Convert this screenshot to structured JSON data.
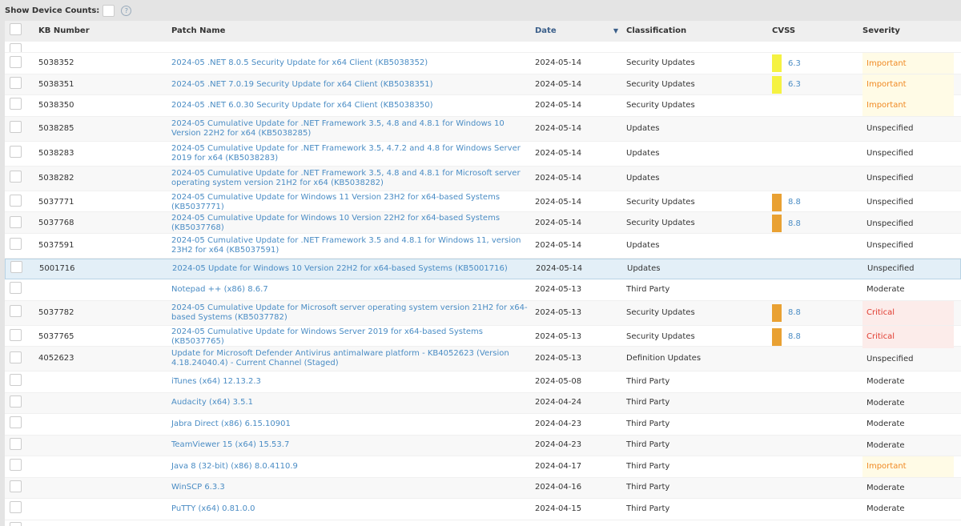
{
  "toolbar": {
    "show_device_counts": "Show Device Counts:",
    "help": "?"
  },
  "columns": {
    "kb": "KB Number",
    "name": "Patch Name",
    "date": "Date",
    "class": "Classification",
    "cvss": "CVSS",
    "severity": "Severity",
    "sort_icon": "▼"
  },
  "colors": {
    "important_text": "#f08a24",
    "important_bg": "#fffbe6",
    "critical_text": "#e03b2f",
    "critical_bg": "#fcecea",
    "cvss_medium": "#f5f242",
    "cvss_high": "#e9a133"
  },
  "rows": [
    {
      "kb": "5038352",
      "name": "2024-05 .NET 8.0.5 Security Update for x64 Client (KB5038352)",
      "date": "2024-05-14",
      "class": "Security Updates",
      "cvss": "6.3",
      "severity": "Important"
    },
    {
      "kb": "5038351",
      "name": "2024-05 .NET 7.0.19 Security Update for x64 Client (KB5038351)",
      "date": "2024-05-14",
      "class": "Security Updates",
      "cvss": "6.3",
      "severity": "Important"
    },
    {
      "kb": "5038350",
      "name": "2024-05 .NET 6.0.30 Security Update for x64 Client (KB5038350)",
      "date": "2024-05-14",
      "class": "Security Updates",
      "cvss": "",
      "severity": "Important"
    },
    {
      "kb": "5038285",
      "name": "2024-05 Cumulative Update for .NET Framework 3.5, 4.8 and 4.8.1 for Windows 10 Version 22H2 for x64 (KB5038285)",
      "date": "2024-05-14",
      "class": "Updates",
      "cvss": "",
      "severity": "Unspecified"
    },
    {
      "kb": "5038283",
      "name": "2024-05 Cumulative Update for .NET Framework 3.5, 4.7.2 and 4.8 for Windows Server 2019 for x64 (KB5038283)",
      "date": "2024-05-14",
      "class": "Updates",
      "cvss": "",
      "severity": "Unspecified"
    },
    {
      "kb": "5038282",
      "name": "2024-05 Cumulative Update for .NET Framework 3.5, 4.8 and 4.8.1 for Microsoft server operating system version 21H2 for x64 (KB5038282)",
      "date": "2024-05-14",
      "class": "Updates",
      "cvss": "",
      "severity": "Unspecified"
    },
    {
      "kb": "5037771",
      "name": "2024-05 Cumulative Update for Windows 11 Version 23H2 for x64-based Systems (KB5037771)",
      "date": "2024-05-14",
      "class": "Security Updates",
      "cvss": "8.8",
      "severity": "Unspecified"
    },
    {
      "kb": "5037768",
      "name": "2024-05 Cumulative Update for Windows 10 Version 22H2 for x64-based Systems (KB5037768)",
      "date": "2024-05-14",
      "class": "Security Updates",
      "cvss": "8.8",
      "severity": "Unspecified"
    },
    {
      "kb": "5037591",
      "name": "2024-05 Cumulative Update for .NET Framework 3.5 and 4.8.1 for Windows 11, version 23H2 for x64 (KB5037591)",
      "date": "2024-05-14",
      "class": "Updates",
      "cvss": "",
      "severity": "Unspecified"
    },
    {
      "kb": "5001716",
      "name": "2024-05 Update for Windows 10 Version 22H2 for x64-based Systems (KB5001716)",
      "date": "2024-05-14",
      "class": "Updates",
      "cvss": "",
      "severity": "Unspecified",
      "selected": true
    },
    {
      "kb": "",
      "name": "Notepad ++ (x86) 8.6.7",
      "date": "2024-05-13",
      "class": "Third Party",
      "cvss": "",
      "severity": "Moderate"
    },
    {
      "kb": "5037782",
      "name": "2024-05 Cumulative Update for Microsoft server operating system version 21H2 for x64-based Systems (KB5037782)",
      "date": "2024-05-13",
      "class": "Security Updates",
      "cvss": "8.8",
      "severity": "Critical"
    },
    {
      "kb": "5037765",
      "name": "2024-05 Cumulative Update for Windows Server 2019 for x64-based Systems (KB5037765)",
      "date": "2024-05-13",
      "class": "Security Updates",
      "cvss": "8.8",
      "severity": "Critical"
    },
    {
      "kb": "4052623",
      "name": "Update for Microsoft Defender Antivirus antimalware platform - KB4052623 (Version 4.18.24040.4) - Current Channel (Staged)",
      "date": "2024-05-13",
      "class": "Definition Updates",
      "cvss": "",
      "severity": "Unspecified"
    },
    {
      "kb": "",
      "name": "iTunes (x64) 12.13.2.3",
      "date": "2024-05-08",
      "class": "Third Party",
      "cvss": "",
      "severity": "Moderate"
    },
    {
      "kb": "",
      "name": "Audacity (x64) 3.5.1",
      "date": "2024-04-24",
      "class": "Third Party",
      "cvss": "",
      "severity": "Moderate"
    },
    {
      "kb": "",
      "name": "Jabra Direct (x86) 6.15.10901",
      "date": "2024-04-23",
      "class": "Third Party",
      "cvss": "",
      "severity": "Moderate"
    },
    {
      "kb": "",
      "name": "TeamViewer 15 (x64) 15.53.7",
      "date": "2024-04-23",
      "class": "Third Party",
      "cvss": "",
      "severity": "Moderate"
    },
    {
      "kb": "",
      "name": "Java 8 (32-bit) (x86) 8.0.4110.9",
      "date": "2024-04-17",
      "class": "Third Party",
      "cvss": "",
      "severity": "Important"
    },
    {
      "kb": "",
      "name": "WinSCP 6.3.3",
      "date": "2024-04-16",
      "class": "Third Party",
      "cvss": "",
      "severity": "Moderate"
    },
    {
      "kb": "",
      "name": "PuTTY (x64) 0.81.0.0",
      "date": "2024-04-15",
      "class": "Third Party",
      "cvss": "",
      "severity": "Moderate"
    }
  ]
}
